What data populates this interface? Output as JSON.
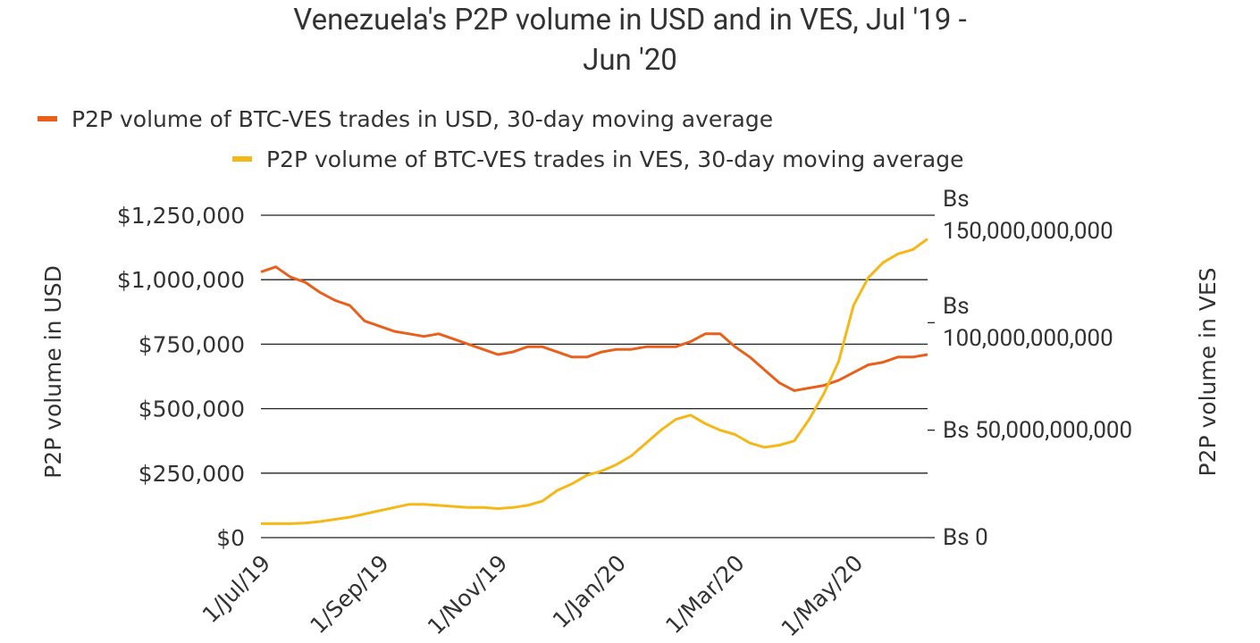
{
  "chart_data": {
    "type": "line",
    "title": "Venezuela's P2P volume in USD and in VES, Jul '19 - Jun '20",
    "y_label": "P2P volume in USD",
    "y2_label": "P2P volume in VES",
    "legend": "top",
    "grid": true,
    "categories": [
      "1/Jul/19",
      null,
      null,
      null,
      null,
      null,
      null,
      null,
      "1/Sep/19",
      null,
      null,
      null,
      null,
      null,
      null,
      null,
      "1/Nov/19",
      null,
      null,
      null,
      null,
      null,
      null,
      null,
      "1/Jan/20",
      null,
      null,
      null,
      null,
      null,
      null,
      null,
      "1/Mar/20",
      null,
      null,
      null,
      null,
      null,
      null,
      null,
      "1/May/20",
      null,
      null,
      null,
      null,
      null
    ],
    "ylim": [
      0,
      1250000
    ],
    "yticks": [
      {
        "value": 0,
        "label": "$0"
      },
      {
        "value": 250000,
        "label": "$250,000"
      },
      {
        "value": 500000,
        "label": "$500,000"
      },
      {
        "value": 750000,
        "label": "$750,000"
      },
      {
        "value": 1000000,
        "label": "$1,000,000"
      },
      {
        "value": 1250000,
        "label": "$1,250,000"
      }
    ],
    "y2lim": [
      0,
      150000000000
    ],
    "y2ticks": [
      {
        "value": 0,
        "label": "Bs 0"
      },
      {
        "value": 50000000000,
        "label": "Bs 50,000,000,000"
      },
      {
        "value": 100000000000,
        "label": "Bs 100,000,000,000"
      },
      {
        "value": 150000000000,
        "label": "Bs 150,000,000,000"
      }
    ],
    "series": [
      {
        "name": "P2P volume of BTC-VES trades in USD, 30-day moving average",
        "color": "#e8601c",
        "values": [
          1030000,
          1050000,
          1010000,
          990000,
          950000,
          920000,
          900000,
          840000,
          820000,
          800000,
          790000,
          780000,
          790000,
          770000,
          750000,
          730000,
          710000,
          720000,
          740000,
          740000,
          720000,
          700000,
          700000,
          720000,
          730000,
          730000,
          740000,
          740000,
          740000,
          760000,
          790000,
          790000,
          740000,
          700000,
          650000,
          600000,
          570000,
          580000,
          590000,
          610000,
          640000,
          670000,
          680000,
          700000,
          700000,
          710000
        ]
      },
      {
        "name": "P2P volume of BTC-VES trades in VES, 30-day moving average",
        "color": "#f5b819",
        "axis": "y2",
        "values": [
          6500000000,
          6500000000,
          6500000000,
          6800000000,
          7500000000,
          8500000000,
          9500000000,
          11000000000,
          12500000000,
          14000000000,
          15500000000,
          15500000000,
          15000000000,
          14500000000,
          14000000000,
          14000000000,
          13500000000,
          14000000000,
          15000000000,
          17000000000,
          22000000000,
          25000000000,
          29000000000,
          31000000000,
          34000000000,
          38000000000,
          44000000000,
          50000000000,
          55000000000,
          57000000000,
          53000000000,
          50000000000,
          48000000000,
          44000000000,
          42000000000,
          43000000000,
          45000000000,
          55000000000,
          67000000000,
          82000000000,
          108000000000,
          121000000000,
          128000000000,
          132000000000,
          134000000000,
          139000000000
        ]
      }
    ]
  }
}
